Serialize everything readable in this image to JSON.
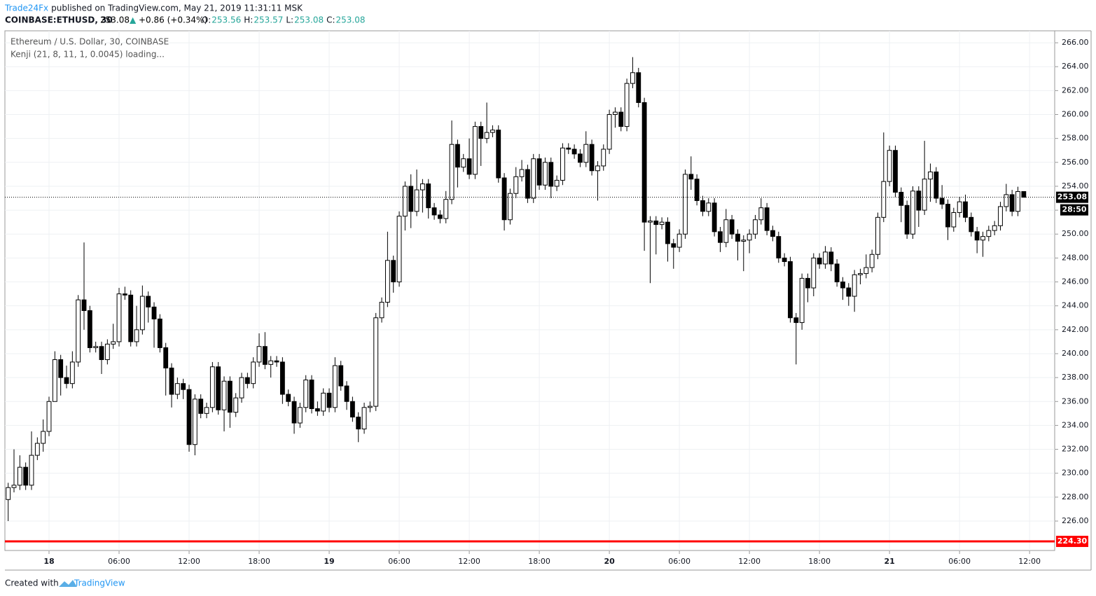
{
  "header": {
    "publisher": "Trade24Fx",
    "published": "published on TradingView.com, May 21, 2019 11:31:11 MSK",
    "symbol": "COINBASE:ETHUSD, 30",
    "last": "253.08",
    "change": "+0.86 (+0.34%)",
    "ohlc": [
      {
        "label": "O:",
        "value": "253.56"
      },
      {
        "label": "H:",
        "value": "253.57"
      },
      {
        "label": "L:",
        "value": "253.08"
      },
      {
        "label": "C:",
        "value": "253.08"
      }
    ]
  },
  "footer": {
    "created": "Created with",
    "brand": "TradingView"
  },
  "chart_data": {
    "type": "candlestick",
    "title": "Ethereum / U.S. Dollar, 30, COINBASE",
    "subtitle": "Kenji (21, 8, 11, 1, 0.0045) loading...",
    "up_color": "#ffffff",
    "down_color": "#000000",
    "outline_color": "#000000",
    "grid": true,
    "open": [
      227.8,
      228.8,
      229,
      230.5,
      229,
      231.5,
      232.5,
      233.5,
      236,
      239.5,
      238,
      237.5,
      239.3,
      244.5,
      243.6,
      240.5,
      240.6,
      239.5,
      240.8,
      241,
      245,
      244.9,
      241,
      242,
      244.8,
      243.9,
      242.9,
      240.5,
      238.8,
      236.6,
      237.5,
      237,
      232.4,
      236.2,
      235,
      235.5,
      238.9,
      235.3,
      237.7,
      235.1,
      236.3,
      238,
      237.5,
      239.3,
      240.6,
      239.1,
      239.4,
      239.3,
      236.6,
      236,
      234.2,
      235.5,
      237.8,
      235.4,
      235.2,
      236.7,
      235.5,
      239,
      237.3,
      236,
      234.7,
      233.7,
      235.5,
      235.6,
      243,
      244.3,
      247.8,
      246,
      251.5,
      254,
      251.9,
      253.7,
      254.2,
      252.2,
      251.6,
      251.3,
      252.9,
      257.5,
      255.6,
      256.3,
      255,
      259,
      258,
      258.5,
      258.7,
      254.7,
      251.2,
      253.4,
      254.8,
      255.4,
      253,
      256.3,
      254.1,
      256,
      254,
      254.5,
      257.2,
      257.1,
      256.7,
      256,
      257.5,
      255.3,
      255.7,
      257.1,
      260,
      260.2,
      259,
      262.6,
      263.5,
      261,
      251,
      251.1,
      250.8,
      251,
      249.2,
      248.9,
      250,
      255,
      254.6,
      252.8,
      251.9,
      252.6,
      250.2,
      249.3,
      251.2,
      250,
      249.4,
      249.5,
      250,
      251.2,
      252.2,
      250.3,
      249.8,
      248,
      247.7,
      243,
      242.6,
      246.3,
      245.5,
      248,
      247.5,
      248.5,
      247.5,
      246,
      245.5,
      244.8,
      246.6,
      246.7,
      247.2,
      248.3,
      251.4,
      254.4,
      257,
      253.5,
      252.4,
      250,
      253.6,
      252,
      254.6,
      255.2,
      253,
      252.5,
      250.6,
      251.8,
      252.7,
      251.4,
      250.2,
      249.5,
      249.8,
      250.3,
      250.7,
      252.3,
      253.3,
      251.9,
      253.56
    ],
    "high": [
      229.2,
      232,
      231.5,
      230.9,
      233.5,
      233,
      234.5,
      236.4,
      240.2,
      239.9,
      239,
      240.2,
      244.9,
      249.3,
      244,
      241,
      241,
      241.2,
      242.5,
      245.5,
      245.6,
      245.3,
      244,
      245.7,
      245.2,
      244.3,
      243.3,
      240.9,
      239.2,
      238,
      237.9,
      237.4,
      236.6,
      236.6,
      235.9,
      239.3,
      239.3,
      238.1,
      238.1,
      236.7,
      238.4,
      238.4,
      239.7,
      241.7,
      241.8,
      239.8,
      239.8,
      239.7,
      237,
      236.4,
      235.9,
      238.2,
      238.2,
      236,
      237.1,
      237.1,
      239.7,
      239.4,
      237.7,
      236.4,
      235.1,
      235.9,
      236,
      243.4,
      244.7,
      250.2,
      248.2,
      251.9,
      254.4,
      255,
      255.4,
      254.6,
      254.6,
      252.6,
      252,
      253.6,
      259.5,
      257.9,
      256.7,
      258,
      259.4,
      259.4,
      261,
      259.1,
      259.1,
      255.1,
      253.8,
      255.6,
      256.2,
      255.8,
      256.7,
      256.7,
      256.4,
      256.4,
      254.9,
      257.6,
      257.6,
      257.5,
      257.1,
      258.6,
      257.9,
      256.1,
      257.5,
      260.4,
      260.6,
      260.6,
      263,
      264.8,
      263.9,
      261.4,
      251.5,
      251.5,
      251.4,
      251.4,
      249.6,
      250.4,
      255.4,
      256.5,
      255,
      253.2,
      253,
      253,
      250.6,
      252.1,
      251.6,
      250.4,
      249.9,
      250.4,
      251.6,
      253,
      252.6,
      250.7,
      250.2,
      248.4,
      248.1,
      243.4,
      246.7,
      246.7,
      248.4,
      248.4,
      249,
      248.9,
      247.9,
      246.4,
      245.9,
      247,
      247.1,
      248.3,
      248.7,
      251.8,
      258.5,
      257.4,
      257.4,
      253.9,
      252.8,
      254,
      254,
      257.8,
      255.9,
      255.6,
      254.1,
      252.9,
      252.2,
      253.1,
      253.3,
      251.8,
      250.6,
      250.2,
      250.7,
      251.1,
      252.7,
      254.2,
      253.7,
      253.96,
      253.57
    ],
    "low": [
      226,
      228.4,
      228.6,
      228.6,
      228.6,
      231.1,
      231.8,
      233.1,
      236,
      236.5,
      237.1,
      237.1,
      238.9,
      242,
      240.1,
      240.1,
      238.3,
      239.1,
      240.4,
      240.6,
      244.5,
      240.6,
      240.6,
      241.6,
      242.6,
      240.5,
      240.1,
      236.5,
      235.5,
      236.2,
      236.2,
      231.8,
      231.5,
      234.6,
      234.6,
      235.1,
      234.9,
      233.5,
      233.8,
      234.7,
      235.9,
      237.1,
      237.1,
      238.9,
      238.7,
      238,
      238.9,
      235.8,
      235.6,
      233.3,
      233.8,
      235.1,
      235,
      234.8,
      234.8,
      235.1,
      235.1,
      236.9,
      235.3,
      234.3,
      232.6,
      233.3,
      235.1,
      235.2,
      242.6,
      243.9,
      245.1,
      245.6,
      250.3,
      250.5,
      251.5,
      251.8,
      251.3,
      251.2,
      250.9,
      250.9,
      252.5,
      253.9,
      255.2,
      254.6,
      254.6,
      255.7,
      257.6,
      258.1,
      254.3,
      250.3,
      250.8,
      253,
      254.4,
      252.6,
      252.6,
      253.7,
      253.7,
      253,
      253.6,
      254.1,
      256.7,
      256.3,
      255.6,
      255.6,
      254.9,
      252.8,
      255.3,
      256.7,
      258.9,
      258.6,
      258.6,
      262.2,
      260.6,
      248.6,
      245.9,
      248.3,
      250.4,
      247.7,
      247.1,
      248.5,
      249.6,
      253.7,
      252.4,
      251.5,
      251.5,
      249.8,
      248.5,
      248.9,
      249.6,
      247.8,
      246.9,
      248.4,
      249.6,
      250.8,
      249.9,
      249.4,
      247.6,
      247.3,
      242.6,
      239.1,
      242,
      244.3,
      244.8,
      247.1,
      247.1,
      246.9,
      245.6,
      244.5,
      244,
      243.5,
      245.8,
      246.3,
      246.8,
      247.9,
      251,
      254,
      253.1,
      251,
      249.6,
      249.6,
      250.6,
      251.6,
      252.7,
      252.6,
      252.1,
      249.5,
      250.2,
      251.4,
      251,
      249.8,
      248.4,
      248.1,
      249.4,
      249.9,
      250.3,
      251.9,
      251.5,
      251.5,
      253.08
    ],
    "close": [
      228.8,
      229,
      230.5,
      229,
      231.5,
      232.5,
      233.5,
      236,
      239.5,
      238,
      237.5,
      239.3,
      244.5,
      243.6,
      240.5,
      240.6,
      239.5,
      240.8,
      241,
      245,
      244.9,
      241,
      242,
      244.8,
      243.9,
      242.9,
      240.5,
      238.8,
      236.6,
      237.5,
      237,
      232.4,
      236.2,
      235,
      235.5,
      238.9,
      235.3,
      237.7,
      235.1,
      236.3,
      238,
      237.5,
      239.3,
      240.6,
      239.1,
      239.4,
      239.3,
      236.6,
      236,
      234.2,
      235.5,
      237.8,
      235.4,
      235.2,
      236.7,
      235.5,
      239,
      237.3,
      236,
      234.7,
      233.7,
      235.5,
      235.6,
      243,
      244.3,
      247.8,
      246,
      251.5,
      254,
      251.9,
      253.7,
      254.2,
      252.2,
      251.6,
      251.3,
      252.9,
      257.5,
      255.6,
      256.3,
      255,
      259,
      258,
      258.5,
      258.7,
      254.7,
      251.2,
      253.4,
      254.8,
      255.4,
      253,
      256.3,
      254.1,
      256,
      254,
      254.5,
      257.2,
      257.1,
      256.7,
      256,
      257.5,
      255.3,
      255.7,
      257.1,
      260,
      260.2,
      259,
      262.6,
      263.5,
      261,
      251,
      251.1,
      250.8,
      251,
      249.2,
      248.9,
      250,
      255,
      254.6,
      252.8,
      251.9,
      252.6,
      250.2,
      249.3,
      251.2,
      250,
      249.4,
      249.5,
      250,
      251.2,
      252.2,
      250.3,
      249.8,
      248,
      247.7,
      243,
      242.6,
      246.3,
      245.5,
      248,
      247.5,
      248.5,
      247.5,
      246,
      245.5,
      244.8,
      246.6,
      246.7,
      247.2,
      248.3,
      251.4,
      254.4,
      257,
      253.5,
      252.4,
      250,
      253.6,
      252,
      254.6,
      255.2,
      253,
      252.5,
      250.6,
      251.8,
      252.7,
      251.4,
      250.2,
      249.5,
      249.8,
      250.3,
      250.7,
      252.3,
      253.3,
      251.9,
      253.56,
      253.08
    ],
    "xlim": [
      -0.56,
      179.3
    ],
    "xticks": [
      {
        "value": 7,
        "label": "18"
      },
      {
        "value": 19,
        "label": "06:00"
      },
      {
        "value": 31,
        "label": "12:00"
      },
      {
        "value": 43,
        "label": "18:00"
      },
      {
        "value": 55,
        "label": "19"
      },
      {
        "value": 67,
        "label": "06:00"
      },
      {
        "value": 79,
        "label": "12:00"
      },
      {
        "value": 91,
        "label": "18:00"
      },
      {
        "value": 103,
        "label": "20"
      },
      {
        "value": 115,
        "label": "06:00"
      },
      {
        "value": 127,
        "label": "12:00"
      },
      {
        "value": 139,
        "label": "18:00"
      },
      {
        "value": 151,
        "label": "21"
      },
      {
        "value": 163,
        "label": "06:00"
      },
      {
        "value": 175,
        "label": "12:00"
      }
    ],
    "ylim": [
      223.54,
      267.0
    ],
    "yticks": [
      {
        "value": 226,
        "label": "226.00"
      },
      {
        "value": 228,
        "label": "228.00"
      },
      {
        "value": 230,
        "label": "230.00"
      },
      {
        "value": 232,
        "label": "232.00"
      },
      {
        "value": 234,
        "label": "234.00"
      },
      {
        "value": 236,
        "label": "236.00"
      },
      {
        "value": 238,
        "label": "238.00"
      },
      {
        "value": 240,
        "label": "240.00"
      },
      {
        "value": 242,
        "label": "242.00"
      },
      {
        "value": 244,
        "label": "244.00"
      },
      {
        "value": 246,
        "label": "246.00"
      },
      {
        "value": 248,
        "label": "248.00"
      },
      {
        "value": 250,
        "label": "250.00"
      },
      {
        "value": 252,
        "label": "252.00"
      },
      {
        "value": 254,
        "label": "254.00"
      },
      {
        "value": 256,
        "label": "256.00"
      },
      {
        "value": 258,
        "label": "258.00"
      },
      {
        "value": 260,
        "label": "260.00"
      },
      {
        "value": 262,
        "label": "262.00"
      },
      {
        "value": 264,
        "label": "264.00"
      },
      {
        "value": 266,
        "label": "266.00"
      }
    ],
    "last_price": {
      "value": 253.08,
      "label": "253.08",
      "countdown": "28:50"
    },
    "hline": {
      "value": 224.3,
      "label": "224.30",
      "color": "#ff0000"
    }
  }
}
